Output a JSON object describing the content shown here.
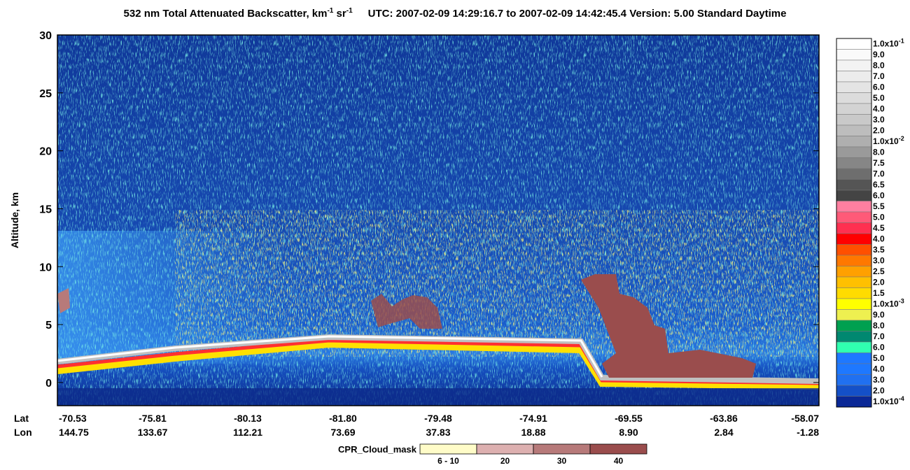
{
  "chart_data": {
    "type": "curtain",
    "title_parts": [
      "532 nm Total Attenuated Backscatter, km",
      "-1",
      " sr",
      "-1"
    ],
    "subtitle": "UTC:  2007-02-09 14:29:16.7  to  2007-02-09 14:42:45.4    Version: 5.00  Standard  Daytime",
    "ylabel": "Altitude, km",
    "ylim": [
      -2,
      30
    ],
    "yticks": [
      0,
      5,
      10,
      15,
      20,
      25,
      30
    ],
    "row_labels": [
      "Lat",
      "Lon"
    ],
    "lat": [
      "-70.53",
      "-75.81",
      "-80.13",
      "-81.80",
      "-79.48",
      "-74.91",
      "-69.55",
      "-63.86",
      "-58.07"
    ],
    "lon": [
      "144.75",
      "133.67",
      "112.21",
      "73.69",
      "37.83",
      "18.88",
      "8.90",
      "2.84",
      "-1.28"
    ],
    "colorbar": {
      "labels": [
        {
          "label": "1.0x10",
          "exp": "-1"
        },
        "9.0",
        "8.0",
        "7.0",
        "6.0",
        "5.0",
        "4.0",
        "3.0",
        "2.0",
        {
          "label": "1.0x10",
          "exp": "-2"
        },
        "8.0",
        "7.5",
        "7.0",
        "6.5",
        "6.0",
        "5.5",
        "5.0",
        "4.5",
        "4.0",
        "3.5",
        "3.0",
        "2.5",
        "2.0",
        "1.5",
        {
          "label": "1.0x10",
          "exp": "-3"
        },
        "9.0",
        "8.0",
        "7.0",
        "6.0",
        "5.0",
        "4.0",
        "3.0",
        "2.0",
        {
          "label": "1.0x10",
          "exp": "-4"
        }
      ],
      "colors": [
        "#ffffff",
        "#fafafa",
        "#f3f3f3",
        "#ececec",
        "#e4e4e4",
        "#dcdcdc",
        "#d3d3d3",
        "#c9c9c9",
        "#bdbdbd",
        "#afafaf",
        "#9a9a9a",
        "#868686",
        "#6e6e6e",
        "#555555",
        "#444444",
        "#ff7fa0",
        "#ff5a78",
        "#ff3050",
        "#ff0000",
        "#ff5000",
        "#ff7800",
        "#ffa000",
        "#ffc000",
        "#ffdc00",
        "#ffff00",
        "#eef050",
        "#00a050",
        "#008870",
        "#30ffb0",
        "#1e78ff",
        "#1e78ff",
        "#2070f0",
        "#1450c8",
        "#0a2896"
      ]
    },
    "legend": {
      "title": "CPR_Cloud_mask",
      "items": [
        {
          "label": "6 - 10",
          "color": "#fffcc8"
        },
        {
          "label": "20",
          "color": "#ddb0b0"
        },
        {
          "label": "30",
          "color": "#b77a7a"
        },
        {
          "label": "40",
          "color": "#9a4d4d"
        }
      ]
    }
  }
}
